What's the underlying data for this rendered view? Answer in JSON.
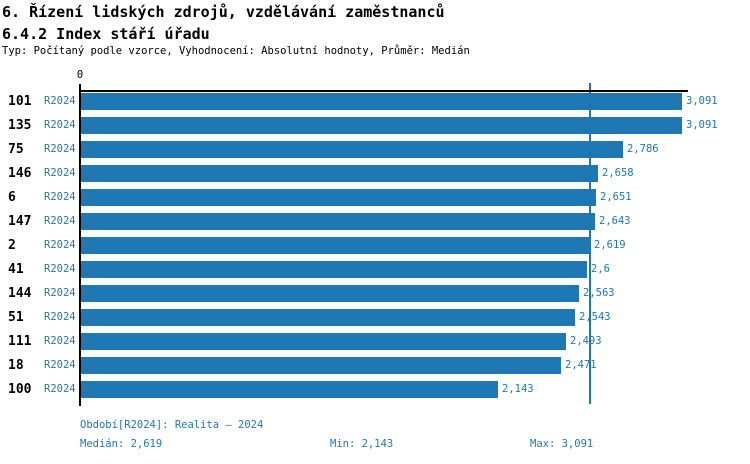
{
  "page": {
    "title": "6. Řízení lidských zdrojů, vzdělávání zaměstnanců",
    "subtitle": "6.4.2 Index stáří úřadu",
    "meta_line": "Typ: Počítaný podle vzorce, Vyhodnocení: Absolutní hodnoty, Průměr: Medián"
  },
  "colors": {
    "bar": "#1F77B4",
    "blue_text": "#1F77B4",
    "axis": "#000000",
    "background": "#FFFFFF"
  },
  "chart_data": {
    "type": "bar",
    "orientation": "horizontal",
    "title": "6.4.2 Index stáří úřadu",
    "xlabel": "",
    "ylabel": "",
    "axis_origin_label": "0",
    "xlim": [
      0,
      3.125
    ],
    "grid": "median-line-only",
    "series_label": "R2024",
    "categories": [
      "101",
      "135",
      "75",
      "146",
      "6",
      "147",
      "2",
      "41",
      "144",
      "51",
      "111",
      "18",
      "100"
    ],
    "values": [
      3.091,
      3.091,
      2.786,
      2.658,
      2.651,
      2.643,
      2.619,
      2.6,
      2.563,
      2.543,
      2.493,
      2.471,
      2.143
    ],
    "value_labels": [
      "3,091",
      "3,091",
      "2,786",
      "2,658",
      "2,651",
      "2,643",
      "2,619",
      "2,6",
      "2,563",
      "2,543",
      "2,493",
      "2,471",
      "2,143"
    ],
    "median_value": 2.619,
    "min_value": 2.143,
    "max_value": 3.091
  },
  "footer": {
    "period": "Období[R2024]: Realita – 2024",
    "median": "Medián: 2,619",
    "min": "Min: 2,143",
    "max": "Max: 3,091"
  }
}
